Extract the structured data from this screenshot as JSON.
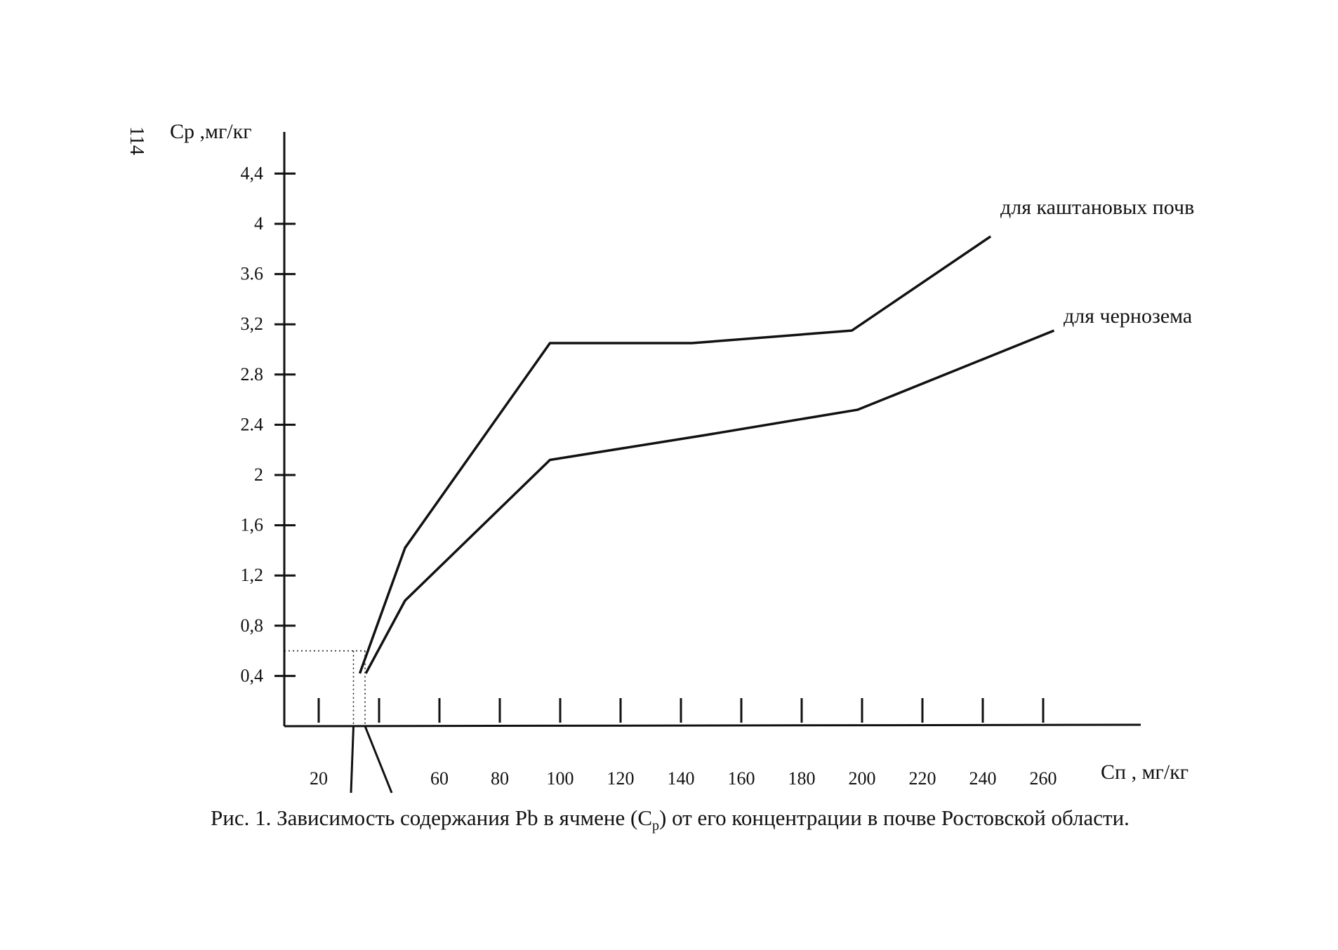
{
  "page_number": "114",
  "caption": {
    "prefix": "Рис. 1. Зависимость содержания Pb в ячмене (С",
    "sub": "р",
    "suffix": ") от его концентрации в почве Ростовской области."
  },
  "chart_data": {
    "type": "line",
    "title": "",
    "ylabel": "Cp ,мг/кг",
    "xlabel": "Сп , мг/кг",
    "xlim": [
      0,
      280
    ],
    "ylim": [
      0,
      4.6
    ],
    "x_ticks": [
      20,
      60,
      80,
      100,
      120,
      140,
      160,
      180,
      200,
      220,
      240,
      260
    ],
    "x_tick_labels": [
      "20",
      "60",
      "80",
      "100",
      "120",
      "140",
      "160",
      "180",
      "200",
      "220",
      "240",
      "260"
    ],
    "y_ticks": [
      0.4,
      0.8,
      1.2,
      1.6,
      2,
      2.4,
      2.8,
      3.2,
      3.6,
      4,
      4.4
    ],
    "y_tick_labels": [
      "0,4",
      "0,8",
      "1,2",
      "1,6",
      "2",
      "2.4",
      "2.8",
      "3,2",
      "3.6",
      "4",
      "4,4"
    ],
    "grid": false,
    "series": [
      {
        "name": "для каштановых почв",
        "x": [
          25,
          40,
          88,
          135,
          188,
          234
        ],
        "y": [
          0.42,
          1.42,
          3.05,
          3.05,
          3.15,
          3.9
        ]
      },
      {
        "name": "для чернозема",
        "x": [
          27,
          40,
          88,
          140,
          190,
          255
        ],
        "y": [
          0.42,
          1.0,
          2.12,
          2.32,
          2.52,
          3.15
        ]
      }
    ],
    "annotation": {
      "y_value": 0.6,
      "x_range": [
        25,
        30
      ],
      "style": "dotted"
    }
  }
}
